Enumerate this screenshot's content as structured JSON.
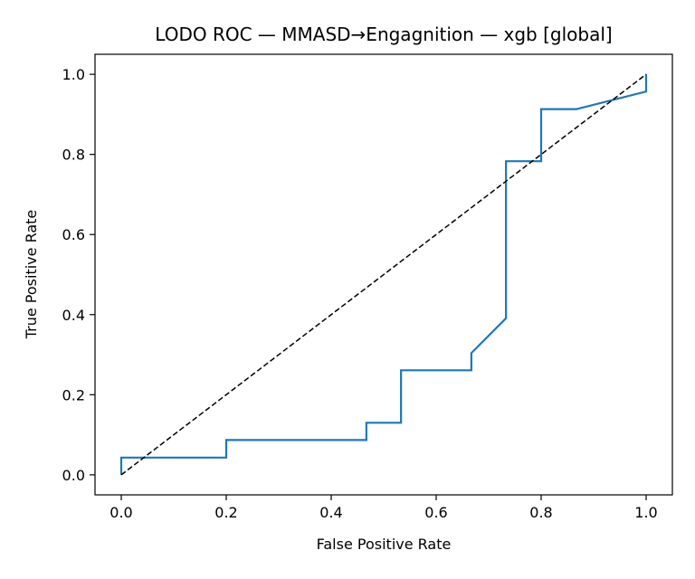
{
  "chart_data": {
    "type": "line",
    "title": "LODO ROC — MMASD→Engagnition — xgb [global]",
    "xlabel": "False Positive Rate",
    "ylabel": "True Positive Rate",
    "xlim": [
      -0.05,
      1.05
    ],
    "ylim": [
      -0.05,
      1.05
    ],
    "xticks": [
      "0.0",
      "0.2",
      "0.4",
      "0.6",
      "0.8",
      "1.0"
    ],
    "yticks": [
      "0.0",
      "0.2",
      "0.4",
      "0.6",
      "0.8",
      "1.0"
    ],
    "grid": false,
    "legend": "none",
    "series": [
      {
        "color": "#1f77b4",
        "style": "solid",
        "x": [
          0.0,
          0.0,
          0.2,
          0.2,
          0.467,
          0.467,
          0.533,
          0.533,
          0.667,
          0.667,
          0.733,
          0.733,
          0.8,
          0.8,
          0.867,
          1.0,
          1.0
        ],
        "y": [
          0.0,
          0.043,
          0.043,
          0.087,
          0.087,
          0.13,
          0.13,
          0.261,
          0.261,
          0.304,
          0.391,
          0.783,
          0.783,
          0.913,
          0.913,
          0.957,
          1.0
        ]
      },
      {
        "color": "#000000",
        "style": "dashed",
        "x": [
          0.0,
          1.0
        ],
        "y": [
          0.0,
          1.0
        ]
      }
    ]
  }
}
